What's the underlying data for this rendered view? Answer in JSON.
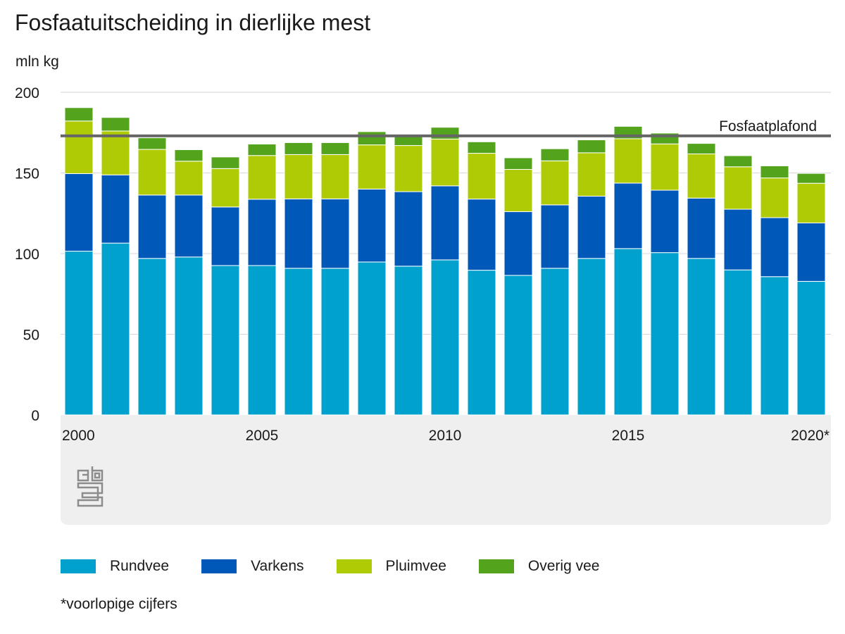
{
  "title": "Fosfaatuitscheiding in dierlijke mest",
  "unit": "mln kg",
  "footnote": "*voorlopige cijfers",
  "chart_data": {
    "type": "bar",
    "stacked": true,
    "title": "Fosfaatuitscheiding in dierlijke mest",
    "ylabel": "mln kg",
    "ylim": [
      0,
      200
    ],
    "yticks": [
      0,
      50,
      100,
      150,
      200
    ],
    "grid": true,
    "legend": "bottom",
    "categories": [
      "2000",
      "2001",
      "2002",
      "2003",
      "2004",
      "2005",
      "2006",
      "2007",
      "2008",
      "2009",
      "2010",
      "2011",
      "2012",
      "2013",
      "2014",
      "2015",
      "2016",
      "2017",
      "2018",
      "2019",
      "2020*"
    ],
    "tick_labels": [
      {
        "index": 0,
        "label": "2000"
      },
      {
        "index": 5,
        "label": "2005"
      },
      {
        "index": 10,
        "label": "2010"
      },
      {
        "index": 15,
        "label": "2015"
      },
      {
        "index": 20,
        "label": "2020*"
      }
    ],
    "series": [
      {
        "name": "Rundvee",
        "color": "#00a1cd",
        "values": [
          101.5,
          106.5,
          97,
          97.9,
          92.6,
          92.6,
          90.9,
          90.9,
          94.8,
          92.2,
          96.1,
          89.7,
          86.5,
          90.9,
          97,
          103.1,
          100.6,
          97,
          89.9,
          85.7,
          82.8
        ]
      },
      {
        "name": "Varkens",
        "color": "#0058b8",
        "values": [
          48.1,
          42.3,
          39.3,
          38.4,
          36.3,
          41.1,
          43,
          43,
          45.2,
          46.2,
          45.9,
          44.1,
          39.5,
          39.3,
          38.6,
          40.6,
          38.7,
          37.4,
          37.6,
          36.6,
          36.2
        ]
      },
      {
        "name": "Pluimvee",
        "color": "#afcb05",
        "values": [
          32.6,
          27.2,
          28.3,
          21,
          23.8,
          27.1,
          27.5,
          27.5,
          27.4,
          28.6,
          29,
          28.4,
          26.2,
          27.3,
          26.9,
          27.5,
          28.7,
          27.4,
          26.3,
          24.6,
          24.6
        ]
      },
      {
        "name": "Overig vee",
        "color": "#53a31d",
        "values": [
          8.3,
          8.4,
          7.2,
          7.1,
          7.2,
          7.1,
          7.4,
          7.4,
          8.2,
          5.9,
          7.3,
          7.1,
          7.2,
          7.5,
          8,
          7.7,
          6.7,
          6.5,
          6.9,
          7.5,
          6.1
        ]
      }
    ],
    "reference_line": {
      "label": "Fosfaatplafond",
      "value": 173,
      "color": "#666666"
    }
  },
  "icons": {
    "logo": "cbs-logo-icon"
  }
}
